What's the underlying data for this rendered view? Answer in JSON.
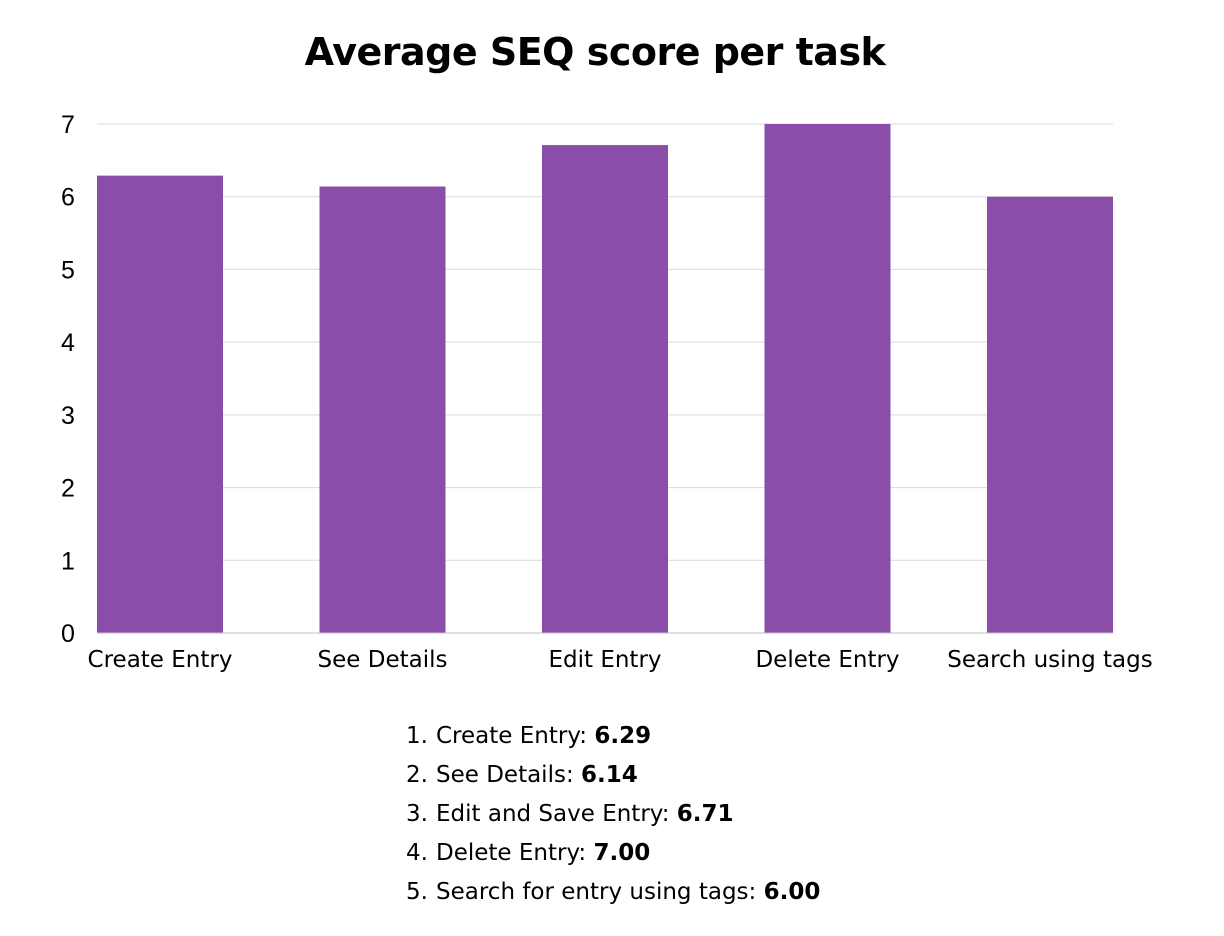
{
  "chart_data": {
    "type": "bar",
    "title": "Average SEQ score per task",
    "categories": [
      "Create Entry",
      "See Details",
      "Edit Entry",
      "Delete Entry",
      "Search using tags"
    ],
    "values": [
      6.29,
      6.14,
      6.71,
      7.0,
      6.0
    ],
    "xlabel": "",
    "ylabel": "",
    "ylim": [
      0,
      7
    ],
    "yticks": [
      "0",
      "1",
      "2",
      "3",
      "4",
      "5",
      "6",
      "7"
    ],
    "grid": true,
    "legend": "none",
    "bar_color": "#8A4EA8",
    "grid_color": "#D9D9D9"
  },
  "notes": [
    {
      "num": "1.",
      "label": "Create Entry: ",
      "value": "6.29"
    },
    {
      "num": "2.",
      "label": "See Details: ",
      "value": "6.14"
    },
    {
      "num": "3.",
      "label": "Edit and Save Entry: ",
      "value": "6.71"
    },
    {
      "num": "4.",
      "label": "Delete Entry: ",
      "value": "7.00"
    },
    {
      "num": "5.",
      "label": "Search for entry using tags: ",
      "value": "6.00"
    }
  ]
}
